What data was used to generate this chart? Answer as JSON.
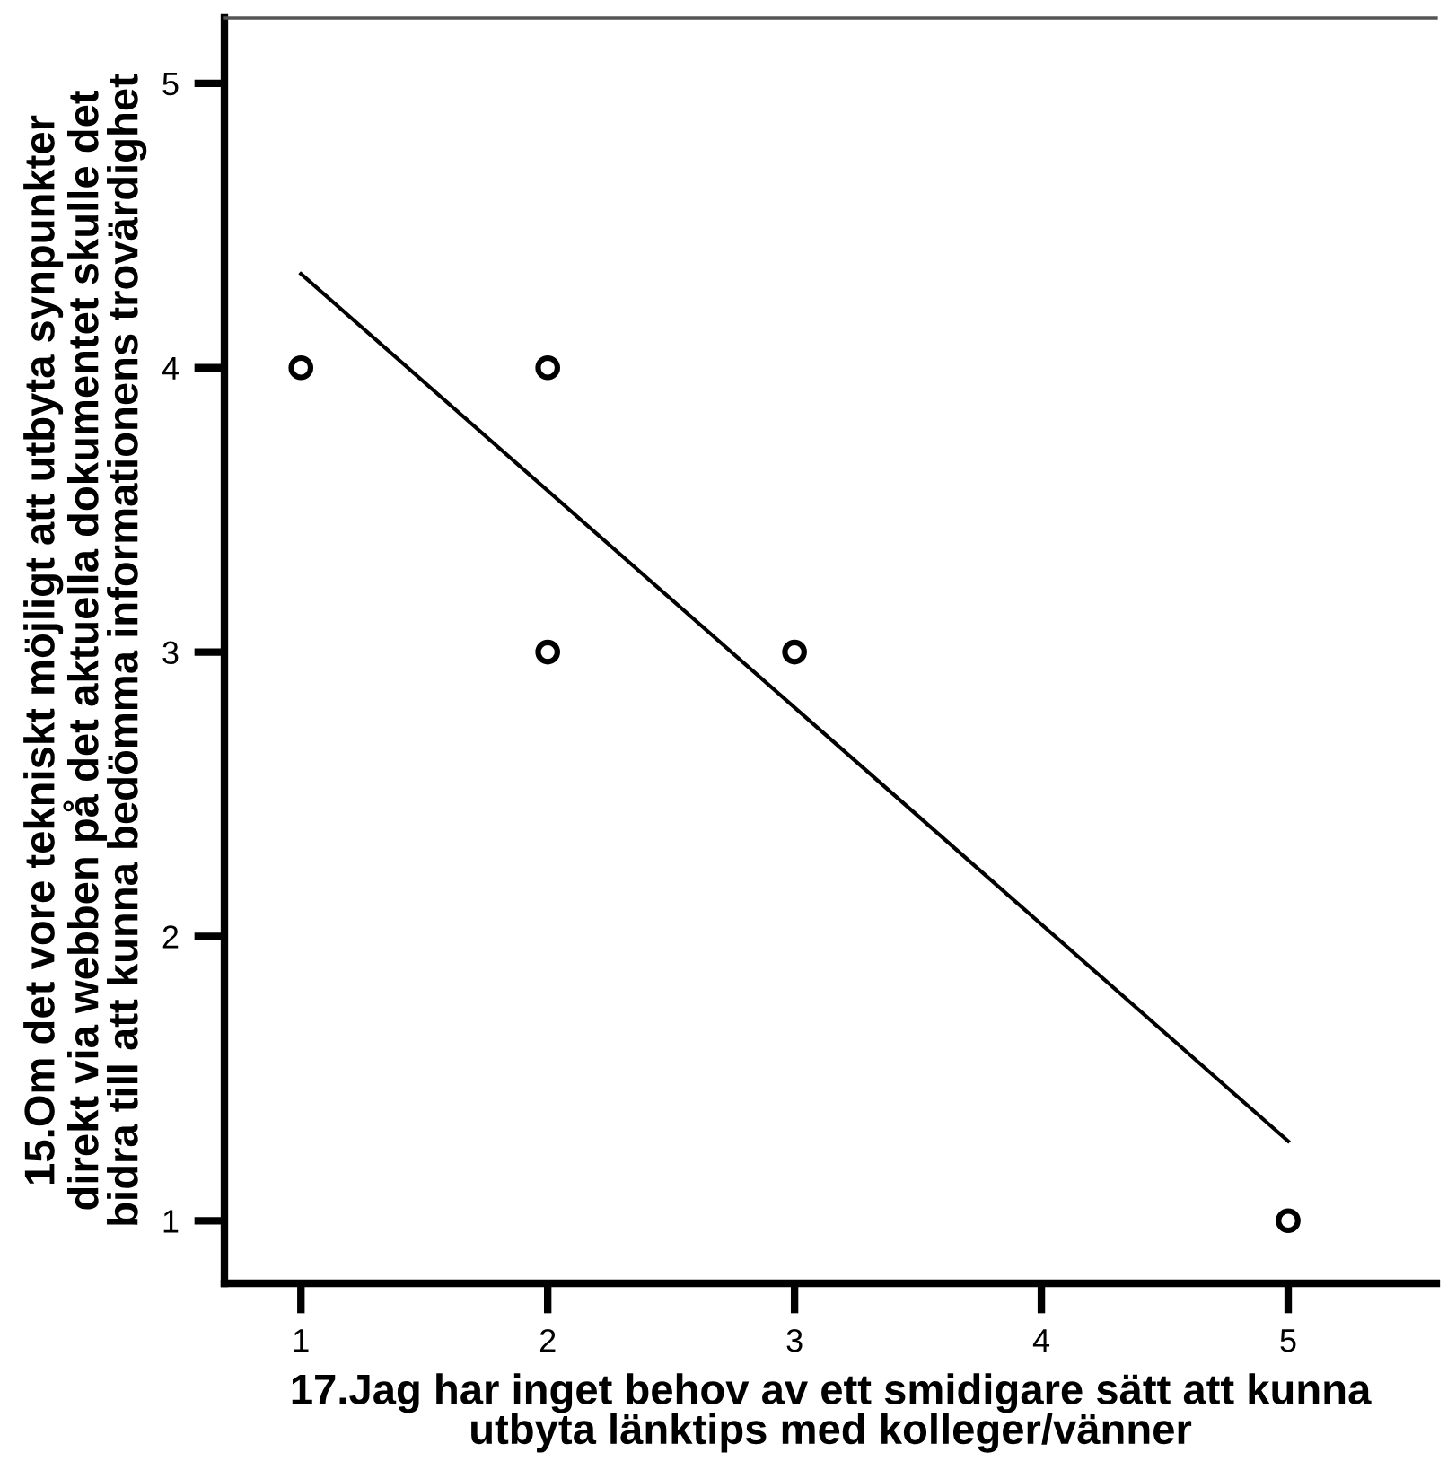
{
  "chart_data": {
    "type": "scatter",
    "xlabel": "17.Jag har inget behov av ett smidigare sätt att kunna\nutbyta länktips med kolleger/vänner",
    "ylabel": "15.Om det vore tekniskt möjligt att utbyta synpunkter\ndirekt via webben på det aktuella dokumentet skulle det\nbidra till att kunna bedömma informationens trovärdighet",
    "series": [
      {
        "color": "#000000",
        "marker": "circle",
        "x": [
          1,
          2,
          2,
          3,
          5
        ],
        "values": [
          4,
          4,
          3,
          3,
          1
        ]
      },
      {
        "type": "line",
        "color": "#000000",
        "marker": "none",
        "line_style": "solid",
        "x": [
          1,
          5
        ],
        "values": [
          4.33,
          1.28
        ]
      }
    ],
    "xlim": [
      0.69,
      5.6
    ],
    "ylim": [
      0.78,
      5.23
    ],
    "xticks": [
      1,
      2,
      3,
      4,
      5
    ],
    "yticks": [
      1,
      2,
      3,
      4,
      5
    ],
    "grid": false,
    "legend": false
  }
}
